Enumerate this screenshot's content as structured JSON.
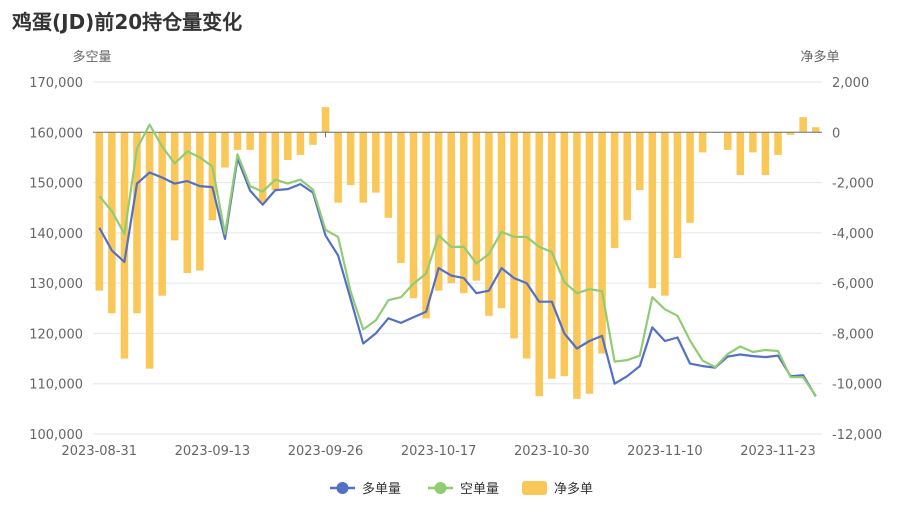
{
  "title": "鸡蛋(JD)前20持仓量变化",
  "colors": {
    "long": "#5470c6",
    "short": "#91cc75",
    "net": "#fac858",
    "grid": "#e0e6f1",
    "axis": "#6e7079"
  },
  "chart_data": {
    "type": "bar+line",
    "title": "鸡蛋(JD)前20持仓量变化",
    "y_left_label": "多空量",
    "y_right_label": "净多单",
    "y_left_range": [
      100000,
      170000
    ],
    "y_left_ticks": [
      "170,000",
      "160,000",
      "150,000",
      "140,000",
      "130,000",
      "120,000",
      "110,000",
      "100,000"
    ],
    "y_right_range": [
      -12000,
      2000
    ],
    "y_right_ticks": [
      "2,000",
      "0",
      "-2,000",
      "-4,000",
      "-6,000",
      "-8,000",
      "-10,000",
      "-12,000"
    ],
    "x_tick_labels": [
      "2023-08-31",
      "2023-09-13",
      "2023-09-26",
      "2023-10-17",
      "2023-10-30",
      "2023-11-10",
      "2023-11-23"
    ],
    "x_tick_indices": [
      0,
      9,
      18,
      27,
      36,
      45,
      54
    ],
    "grid": true,
    "legend_position": "bottom",
    "series": [
      {
        "name": "多单量",
        "type": "line",
        "values": [
          141000,
          136500,
          134200,
          149800,
          152000,
          151000,
          149800,
          150300,
          149300,
          149100,
          138800,
          154800,
          148400,
          145600,
          148500,
          148700,
          149700,
          148000,
          139500,
          135500,
          126800,
          118000,
          120000,
          123000,
          122100,
          123200,
          124300,
          133000,
          131500,
          131000,
          128000,
          128500,
          133000,
          131000,
          130000,
          126300,
          126300,
          120000,
          117000,
          118500,
          119500,
          110000,
          111500,
          113500,
          121200,
          118500,
          119200,
          114000,
          113500,
          113200,
          115400,
          115800,
          115500,
          115300,
          115600,
          111500,
          111700,
          107500
        ]
      },
      {
        "name": "空单量",
        "type": "line",
        "values": [
          147300,
          144300,
          139800,
          156800,
          161500,
          157200,
          153800,
          156200,
          155000,
          153200,
          139800,
          155600,
          149300,
          148200,
          150600,
          149800,
          150600,
          148600,
          140600,
          139200,
          128300,
          120800,
          122600,
          126600,
          127200,
          129900,
          131900,
          139500,
          137200,
          137200,
          133900,
          135800,
          140200,
          139200,
          139200,
          137200,
          136200,
          130200,
          128000,
          128800,
          128400,
          114400,
          114700,
          115600,
          127200,
          124800,
          123500,
          118600,
          114600,
          113300,
          115900,
          117400,
          116300,
          116700,
          116500,
          111300,
          111300,
          107600
        ]
      },
      {
        "name": "净多单",
        "type": "bar",
        "values": [
          -6300,
          -7200,
          -9000,
          -7200,
          -9400,
          -6500,
          -4300,
          -5600,
          -5500,
          -3500,
          -1400,
          -700,
          -700,
          -2800,
          -2300,
          -1100,
          -900,
          -500,
          1000,
          -2800,
          -2100,
          -2800,
          -2400,
          -3400,
          -5200,
          -6600,
          -7400,
          -6300,
          -6000,
          -6400,
          -5900,
          -7300,
          -7000,
          -8200,
          -9000,
          -10500,
          -9800,
          -9700,
          -10600,
          -10400,
          -8800,
          -4600,
          -3500,
          -2300,
          -6200,
          -6500,
          -5000,
          -3600,
          -800,
          0,
          -700,
          -1700,
          -800,
          -1700,
          -900,
          -100,
          600,
          200
        ]
      }
    ]
  },
  "legend": [
    {
      "label": "多单量",
      "kind": "line",
      "color": "#5470c6"
    },
    {
      "label": "空单量",
      "kind": "line",
      "color": "#91cc75"
    },
    {
      "label": "净多单",
      "kind": "bar",
      "color": "#fac858"
    }
  ]
}
